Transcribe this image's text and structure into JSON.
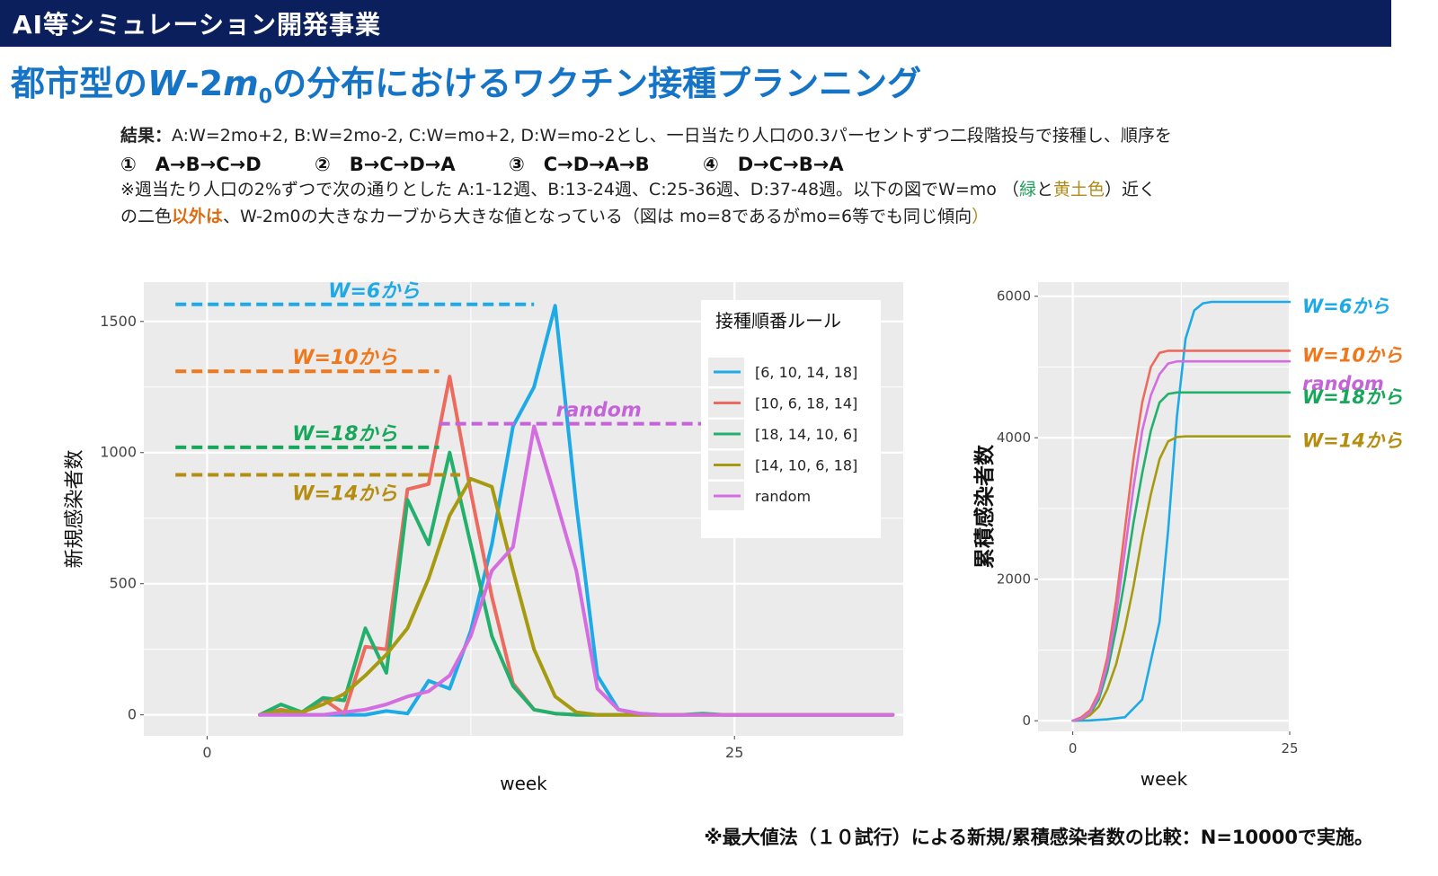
{
  "header": {
    "title": "AI等シミュレーション開発事業"
  },
  "main_title": {
    "pre": "都市型の",
    "w": "W",
    "mid": "-2",
    "m": "m",
    "sub": "0",
    "post": "の分布におけるワクチン接種プランニング"
  },
  "description": {
    "result_label": "結果：",
    "line1": "A:W=2mo+2, B:W=2mo-2, C:W=mo+2, D:W=mo-2とし、一日当たり人口の0.3パーセントずつ二段階投与で接種し、順序を",
    "orders": [
      "①　A→B→C→D",
      "②　B→C→D→A",
      "③　C→D→A→B",
      "④　D→C→B→A"
    ],
    "line3_a": "※週当たり人口の2%ずつで次の通りとした A:1-12週、B:13-24週、C:25-36週、D:37-48週。以下の図でW=mo （",
    "line3_green": "緑",
    "line3_b": "と",
    "line3_ochre": "黄土色",
    "line3_c": "）近く",
    "line4_a": "の二色",
    "line4_orange": "以外は",
    "line4_b": "、W-2m0の大きなカーブから大きな値となっている（図は mo=8であるがmo=6等でも同じ傾向",
    "line4_close": "）"
  },
  "footer": {
    "note": "※最大値法（１０試行）による新規/累積感染者数の比較：N=10000で実施。"
  },
  "colors": {
    "header_bg": "#0b1f5c",
    "title": "#1574c6",
    "panel_bg": "#ebebeb",
    "s1": "#1eaae6",
    "s2": "#ec6a5e",
    "s3": "#22b06c",
    "s4": "#a59a10",
    "s5": "#d46de0"
  },
  "chart_data": [
    {
      "type": "line",
      "ylabel": "新規感染者数",
      "xlabel": "week",
      "xlim": [
        -3,
        33
      ],
      "ylim": [
        -80,
        1650
      ],
      "x_ticks": [
        0,
        25
      ],
      "y_ticks": [
        0,
        500,
        1000,
        1500
      ],
      "grid": true,
      "legend": {
        "title": "接種順番ルール",
        "position": "top-right",
        "entries": [
          "[6, 10, 14, 18]",
          "[10, 6, 18, 14]",
          "[18, 14, 10, 6]",
          "[14, 10, 6, 18]",
          "random"
        ]
      },
      "series": [
        {
          "name": "[6, 10, 14, 18]",
          "color": "#1eaae6",
          "x": [
            2.5,
            3.5,
            4.5,
            5.5,
            6.5,
            7.5,
            8.5,
            9.5,
            10.5,
            11.5,
            12.5,
            13.5,
            14.5,
            15.5,
            16.5,
            17.5,
            18.5,
            19.5,
            20.5,
            21.5,
            22.5,
            23.5,
            24.5,
            25.5,
            26.5,
            27.5,
            28.5,
            29.5,
            30.5,
            31.5,
            32.5
          ],
          "y": [
            0,
            0,
            0,
            0,
            0,
            0,
            15,
            5,
            130,
            100,
            320,
            650,
            1100,
            1250,
            1560,
            800,
            150,
            20,
            5,
            0,
            0,
            0,
            0,
            0,
            0,
            0,
            0,
            0,
            0,
            0,
            0
          ]
        },
        {
          "name": "[10, 6, 18, 14]",
          "color": "#ec6a5e",
          "x": [
            2.5,
            3.5,
            4.5,
            5.5,
            6.5,
            7.5,
            8.5,
            9.5,
            10.5,
            11.5,
            12.5,
            13.5,
            14.5,
            15.5,
            16.5,
            17.5,
            18.5,
            19.5,
            20.5,
            21.5,
            22.5,
            23.5,
            24.5,
            25.5,
            26.5,
            27.5,
            28.5,
            29.5,
            30.5,
            31.5,
            32.5
          ],
          "y": [
            0,
            20,
            5,
            60,
            5,
            260,
            250,
            860,
            880,
            1290,
            850,
            450,
            120,
            20,
            5,
            0,
            0,
            0,
            0,
            0,
            0,
            0,
            0,
            0,
            0,
            0,
            0,
            0,
            0,
            0,
            0
          ]
        },
        {
          "name": "[18, 14, 10, 6]",
          "color": "#22b06c",
          "x": [
            2.5,
            3.5,
            4.5,
            5.5,
            6.5,
            7.5,
            8.5,
            9.5,
            10.5,
            11.5,
            12.5,
            13.5,
            14.5,
            15.5,
            16.5,
            17.5,
            18.5,
            19.5,
            20.5,
            21.5,
            22.5,
            23.5,
            24.5,
            25.5,
            26.5,
            27.5,
            28.5,
            29.5,
            30.5,
            31.5,
            32.5
          ],
          "y": [
            0,
            40,
            10,
            65,
            55,
            330,
            160,
            820,
            650,
            1000,
            650,
            300,
            110,
            20,
            5,
            0,
            0,
            0,
            0,
            0,
            0,
            5,
            0,
            0,
            0,
            0,
            0,
            0,
            0,
            0,
            0
          ]
        },
        {
          "name": "[14, 10, 6, 18]",
          "color": "#a59a10",
          "x": [
            2.5,
            3.5,
            4.5,
            5.5,
            6.5,
            7.5,
            8.5,
            9.5,
            10.5,
            11.5,
            12.5,
            13.5,
            14.5,
            15.5,
            16.5,
            17.5,
            18.5,
            19.5,
            20.5,
            21.5,
            22.5,
            23.5,
            24.5,
            25.5,
            26.5,
            27.5,
            28.5,
            29.5,
            30.5,
            31.5,
            32.5
          ],
          "y": [
            0,
            15,
            10,
            40,
            80,
            150,
            230,
            330,
            520,
            760,
            900,
            870,
            550,
            250,
            70,
            10,
            0,
            0,
            0,
            0,
            0,
            0,
            0,
            0,
            0,
            0,
            0,
            0,
            0,
            0,
            0
          ]
        },
        {
          "name": "random",
          "color": "#d46de0",
          "x": [
            2.5,
            3.5,
            4.5,
            5.5,
            6.5,
            7.5,
            8.5,
            9.5,
            10.5,
            11.5,
            12.5,
            13.5,
            14.5,
            15.5,
            16.5,
            17.5,
            18.5,
            19.5,
            20.5,
            21.5,
            22.5,
            23.5,
            24.5,
            25.5,
            26.5,
            27.5,
            28.5,
            29.5,
            30.5,
            31.5,
            32.5
          ],
          "y": [
            0,
            0,
            0,
            0,
            10,
            20,
            40,
            70,
            90,
            150,
            300,
            550,
            640,
            1100,
            830,
            550,
            100,
            20,
            5,
            0,
            0,
            0,
            0,
            0,
            0,
            0,
            0,
            0,
            0,
            0,
            0
          ]
        }
      ],
      "annotations": [
        {
          "text": "W=6から",
          "color": "#1eaae6",
          "y": 1565,
          "x_from": -1.5,
          "x_to": 15.5
        },
        {
          "text": "W=10から",
          "color": "#f0781c",
          "y": 1310,
          "x_from": -1.5,
          "x_to": 11
        },
        {
          "text": "random",
          "color": "#c464d8",
          "y": 1110,
          "x_from": 11,
          "x_to": 23.5
        },
        {
          "text": "W=18から",
          "color": "#17a75a",
          "y": 1020,
          "x_from": -1.5,
          "x_to": 11
        },
        {
          "text": "W=14から",
          "color": "#b58d10",
          "y": 915,
          "x_from": -1.5,
          "x_to": 12
        }
      ]
    },
    {
      "type": "line",
      "ylabel": "累積感染者数",
      "xlabel": "week",
      "xlim": [
        -4,
        25
      ],
      "ylim": [
        -150,
        6200
      ],
      "x_ticks": [
        0,
        25
      ],
      "y_ticks": [
        0,
        2000,
        4000,
        6000
      ],
      "grid": true,
      "series": [
        {
          "name": "[6, 10, 14, 18]",
          "color": "#1eaae6",
          "x": [
            0,
            2,
            4,
            6,
            8,
            10,
            11,
            12,
            13,
            14,
            15,
            16,
            18,
            20,
            25
          ],
          "y": [
            0,
            5,
            20,
            50,
            300,
            1400,
            2700,
            4300,
            5400,
            5800,
            5900,
            5920,
            5920,
            5920,
            5920
          ]
        },
        {
          "name": "[10, 6, 18, 14]",
          "color": "#ec6a5e",
          "x": [
            0,
            1,
            2,
            3,
            4,
            5,
            6,
            7,
            8,
            9,
            10,
            11,
            12,
            13,
            15,
            20,
            25
          ],
          "y": [
            0,
            50,
            150,
            400,
            900,
            1700,
            2700,
            3700,
            4500,
            5000,
            5200,
            5230,
            5230,
            5230,
            5230,
            5230,
            5230
          ]
        },
        {
          "name": "[18, 14, 10, 6]",
          "color": "#22b06c",
          "x": [
            0,
            1,
            2,
            3,
            4,
            5,
            6,
            7,
            8,
            9,
            10,
            11,
            12,
            13,
            15,
            20,
            25
          ],
          "y": [
            0,
            20,
            100,
            300,
            700,
            1300,
            2000,
            2800,
            3500,
            4100,
            4500,
            4620,
            4640,
            4640,
            4640,
            4640,
            4640
          ]
        },
        {
          "name": "[14, 10, 6, 18]",
          "color": "#a59a10",
          "x": [
            0,
            1,
            2,
            3,
            4,
            5,
            6,
            7,
            8,
            9,
            10,
            11,
            12,
            13,
            15,
            20,
            25
          ],
          "y": [
            0,
            20,
            80,
            200,
            450,
            800,
            1300,
            1900,
            2600,
            3200,
            3700,
            3950,
            4010,
            4020,
            4020,
            4020,
            4020
          ]
        },
        {
          "name": "random",
          "color": "#d46de0",
          "x": [
            0,
            1,
            2,
            3,
            4,
            5,
            6,
            7,
            8,
            9,
            10,
            11,
            12,
            13,
            15,
            20,
            25
          ],
          "y": [
            0,
            30,
            120,
            350,
            800,
            1500,
            2400,
            3300,
            4100,
            4600,
            4900,
            5050,
            5080,
            5080,
            5080,
            5080,
            5080
          ]
        }
      ],
      "annotations": [
        {
          "text": "W=6から",
          "color": "#1eaae6"
        },
        {
          "text": "W=10から",
          "color": "#f0781c"
        },
        {
          "text": "random",
          "color": "#c464d8"
        },
        {
          "text": "W=18から",
          "color": "#17a75a"
        },
        {
          "text": "W=14から",
          "color": "#b58d10"
        }
      ]
    }
  ]
}
